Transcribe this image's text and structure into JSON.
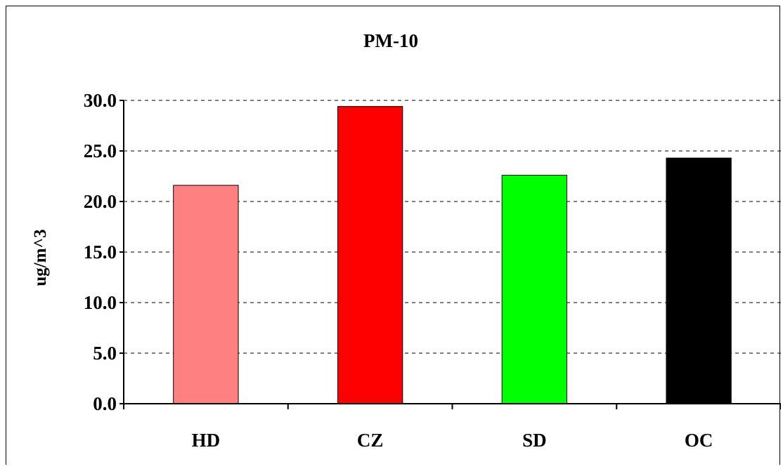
{
  "chart_data": {
    "type": "bar",
    "title": "PM-10",
    "xlabel": "",
    "ylabel": "ug/m^3",
    "categories": [
      "HD",
      "CZ",
      "SD",
      "OC"
    ],
    "values": [
      21.6,
      29.4,
      22.6,
      24.3
    ],
    "colors": [
      "#FF8080",
      "#FF0000",
      "#00FF00",
      "#000000"
    ],
    "yticks": [
      "0.0",
      "5.0",
      "10.0",
      "15.0",
      "20.0",
      "25.0",
      "30.0"
    ],
    "ylim": [
      0,
      30
    ],
    "grid": true
  }
}
